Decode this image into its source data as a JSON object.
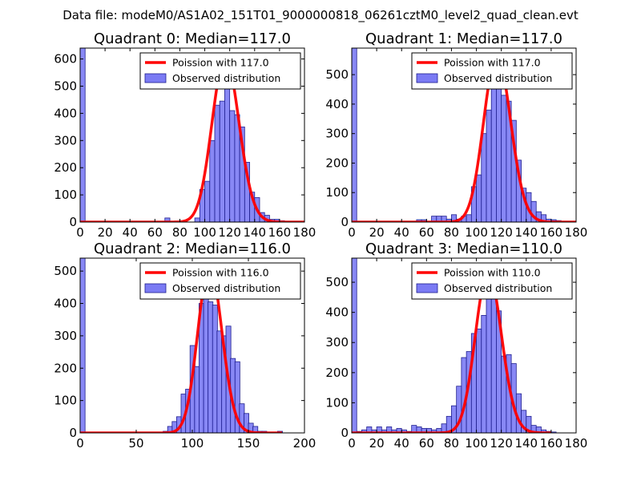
{
  "figure": {
    "suptitle": "Data file: modeM0/AS1A02_151T01_9000000818_06261cztM0_level2_quad_clean.evt",
    "colors": {
      "bar_fill": "#7b7bf4",
      "bar_edge": "#1f1f8f",
      "poisson_line": "#ff0000",
      "axes": "#000000",
      "background": "#ffffff"
    }
  },
  "chart_data": [
    {
      "type": "bar",
      "title": "Quadrant 0: Median=117.0",
      "legend": [
        "Poission with 117.0",
        "Observed distribution"
      ],
      "legend_position": "top-right",
      "xlim": [
        0,
        180
      ],
      "ylim": [
        0,
        640
      ],
      "xticks": [
        0,
        20,
        40,
        60,
        80,
        100,
        120,
        140,
        160,
        180
      ],
      "yticks": [
        0,
        100,
        200,
        300,
        400,
        500,
        600
      ],
      "bin_width": 4,
      "bins": [
        {
          "x": 0,
          "h": 640
        },
        {
          "x": 68,
          "h": 15
        },
        {
          "x": 92,
          "h": 15
        },
        {
          "x": 96,
          "h": 120
        },
        {
          "x": 100,
          "h": 150
        },
        {
          "x": 104,
          "h": 300
        },
        {
          "x": 108,
          "h": 430
        },
        {
          "x": 112,
          "h": 445
        },
        {
          "x": 116,
          "h": 535
        },
        {
          "x": 120,
          "h": 410
        },
        {
          "x": 124,
          "h": 395
        },
        {
          "x": 128,
          "h": 350
        },
        {
          "x": 132,
          "h": 220
        },
        {
          "x": 136,
          "h": 110
        },
        {
          "x": 140,
          "h": 90
        },
        {
          "x": 144,
          "h": 35
        },
        {
          "x": 148,
          "h": 25
        },
        {
          "x": 152,
          "h": 10
        },
        {
          "x": 156,
          "h": 10
        },
        {
          "x": 160,
          "h": 5
        }
      ],
      "poisson": {
        "mean": 117.0,
        "peak": 605,
        "xmax": 180
      }
    },
    {
      "type": "bar",
      "title": "Quadrant 1: Median=117.0",
      "legend": [
        "Poission with 117.0",
        "Observed distribution"
      ],
      "legend_position": "top-right",
      "xlim": [
        0,
        180
      ],
      "ylim": [
        0,
        590
      ],
      "xticks": [
        0,
        20,
        40,
        60,
        80,
        100,
        120,
        140,
        160,
        180
      ],
      "yticks": [
        0,
        100,
        200,
        300,
        400,
        500
      ],
      "bin_width": 4,
      "bins": [
        {
          "x": 0,
          "h": 590
        },
        {
          "x": 52,
          "h": 8
        },
        {
          "x": 56,
          "h": 8
        },
        {
          "x": 64,
          "h": 20
        },
        {
          "x": 68,
          "h": 20
        },
        {
          "x": 72,
          "h": 20
        },
        {
          "x": 76,
          "h": 10
        },
        {
          "x": 80,
          "h": 25
        },
        {
          "x": 84,
          "h": 10
        },
        {
          "x": 88,
          "h": 20
        },
        {
          "x": 92,
          "h": 25
        },
        {
          "x": 96,
          "h": 120
        },
        {
          "x": 100,
          "h": 160
        },
        {
          "x": 104,
          "h": 300
        },
        {
          "x": 108,
          "h": 380
        },
        {
          "x": 112,
          "h": 490
        },
        {
          "x": 116,
          "h": 555
        },
        {
          "x": 120,
          "h": 430
        },
        {
          "x": 124,
          "h": 410
        },
        {
          "x": 128,
          "h": 345
        },
        {
          "x": 132,
          "h": 210
        },
        {
          "x": 136,
          "h": 115
        },
        {
          "x": 140,
          "h": 100
        },
        {
          "x": 144,
          "h": 70
        },
        {
          "x": 148,
          "h": 35
        },
        {
          "x": 152,
          "h": 25
        },
        {
          "x": 156,
          "h": 10
        },
        {
          "x": 160,
          "h": 8
        },
        {
          "x": 164,
          "h": 5
        }
      ],
      "poisson": {
        "mean": 117.0,
        "peak": 565,
        "xmax": 180
      }
    },
    {
      "type": "bar",
      "title": "Quadrant 2: Median=116.0",
      "legend": [
        "Poission with 116.0",
        "Observed distribution"
      ],
      "legend_position": "top-right",
      "xlim": [
        0,
        200
      ],
      "ylim": [
        0,
        540
      ],
      "xticks": [
        0,
        50,
        100,
        150,
        200
      ],
      "yticks": [
        0,
        100,
        200,
        300,
        400,
        500
      ],
      "bin_width": 4.4,
      "bins": [
        {
          "x": 0,
          "h": 540
        },
        {
          "x": 74,
          "h": 5
        },
        {
          "x": 78,
          "h": 20
        },
        {
          "x": 82,
          "h": 35
        },
        {
          "x": 86,
          "h": 50
        },
        {
          "x": 90,
          "h": 120
        },
        {
          "x": 94,
          "h": 135
        },
        {
          "x": 98,
          "h": 270
        },
        {
          "x": 102,
          "h": 205
        },
        {
          "x": 106,
          "h": 400
        },
        {
          "x": 110,
          "h": 425
        },
        {
          "x": 114,
          "h": 405
        },
        {
          "x": 118,
          "h": 395
        },
        {
          "x": 122,
          "h": 315
        },
        {
          "x": 126,
          "h": 300
        },
        {
          "x": 130,
          "h": 330
        },
        {
          "x": 134,
          "h": 230
        },
        {
          "x": 138,
          "h": 220
        },
        {
          "x": 142,
          "h": 90
        },
        {
          "x": 146,
          "h": 60
        },
        {
          "x": 150,
          "h": 30
        },
        {
          "x": 154,
          "h": 20
        },
        {
          "x": 158,
          "h": 5
        },
        {
          "x": 162,
          "h": 5
        },
        {
          "x": 176,
          "h": 5
        }
      ],
      "poisson": {
        "mean": 116.0,
        "peak": 515,
        "xmax": 180
      }
    },
    {
      "type": "bar",
      "title": "Quadrant 3: Median=110.0",
      "legend": [
        "Poission with 110.0",
        "Observed distribution"
      ],
      "legend_position": "top-right",
      "xlim": [
        0,
        180
      ],
      "ylim": [
        0,
        580
      ],
      "xticks": [
        0,
        20,
        40,
        60,
        80,
        100,
        120,
        140,
        160,
        180
      ],
      "yticks": [
        0,
        100,
        200,
        300,
        400,
        500
      ],
      "bin_width": 4,
      "bins": [
        {
          "x": 0,
          "h": 580
        },
        {
          "x": 4,
          "h": 5
        },
        {
          "x": 8,
          "h": 10
        },
        {
          "x": 12,
          "h": 20
        },
        {
          "x": 16,
          "h": 10
        },
        {
          "x": 20,
          "h": 20
        },
        {
          "x": 24,
          "h": 10
        },
        {
          "x": 28,
          "h": 20
        },
        {
          "x": 32,
          "h": 10
        },
        {
          "x": 36,
          "h": 15
        },
        {
          "x": 40,
          "h": 10
        },
        {
          "x": 44,
          "h": 5
        },
        {
          "x": 48,
          "h": 25
        },
        {
          "x": 52,
          "h": 20
        },
        {
          "x": 56,
          "h": 15
        },
        {
          "x": 60,
          "h": 15
        },
        {
          "x": 64,
          "h": 10
        },
        {
          "x": 68,
          "h": 15
        },
        {
          "x": 72,
          "h": 30
        },
        {
          "x": 76,
          "h": 55
        },
        {
          "x": 80,
          "h": 90
        },
        {
          "x": 84,
          "h": 155
        },
        {
          "x": 88,
          "h": 250
        },
        {
          "x": 92,
          "h": 270
        },
        {
          "x": 96,
          "h": 330
        },
        {
          "x": 100,
          "h": 345
        },
        {
          "x": 104,
          "h": 390
        },
        {
          "x": 108,
          "h": 460
        },
        {
          "x": 112,
          "h": 540
        },
        {
          "x": 116,
          "h": 405
        },
        {
          "x": 120,
          "h": 255
        },
        {
          "x": 124,
          "h": 260
        },
        {
          "x": 128,
          "h": 230
        },
        {
          "x": 132,
          "h": 130
        },
        {
          "x": 136,
          "h": 75
        },
        {
          "x": 140,
          "h": 55
        },
        {
          "x": 144,
          "h": 25
        },
        {
          "x": 148,
          "h": 20
        },
        {
          "x": 152,
          "h": 10
        },
        {
          "x": 156,
          "h": 5
        },
        {
          "x": 160,
          "h": 3
        }
      ],
      "poisson": {
        "mean": 110.0,
        "peak": 535,
        "xmax": 160
      }
    }
  ]
}
